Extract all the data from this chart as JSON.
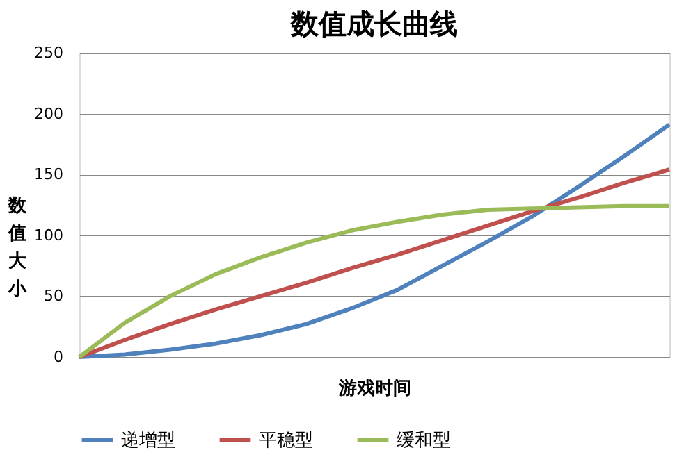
{
  "chart_data": {
    "type": "line",
    "title": "数值成长曲线",
    "xlabel": "游戏时间",
    "ylabel": "数值大小",
    "categories": [
      null,
      null,
      null,
      null,
      null,
      null,
      null,
      null,
      null,
      null,
      null,
      null,
      null,
      null
    ],
    "series": [
      {
        "name": "递增型",
        "color": "#4f81bd",
        "values": [
          0,
          2,
          6,
          11,
          18,
          27,
          40,
          55,
          75,
          95,
          116,
          140,
          165,
          191
        ]
      },
      {
        "name": "平稳型",
        "color": "#c0504d",
        "values": [
          0,
          14,
          27,
          39,
          50,
          61,
          73,
          84,
          96,
          108,
          120,
          131,
          143,
          154
        ]
      },
      {
        "name": "缓和型",
        "color": "#9bbb59",
        "values": [
          0,
          28,
          50,
          68,
          82,
          94,
          104,
          111,
          117,
          121,
          122,
          123,
          124,
          124
        ]
      }
    ],
    "ylim": [
      0,
      250
    ],
    "yticks": [
      0,
      50,
      100,
      150,
      200,
      250
    ],
    "grid": "y",
    "legend": "bottom",
    "marker": "none",
    "line_style": "solid"
  }
}
